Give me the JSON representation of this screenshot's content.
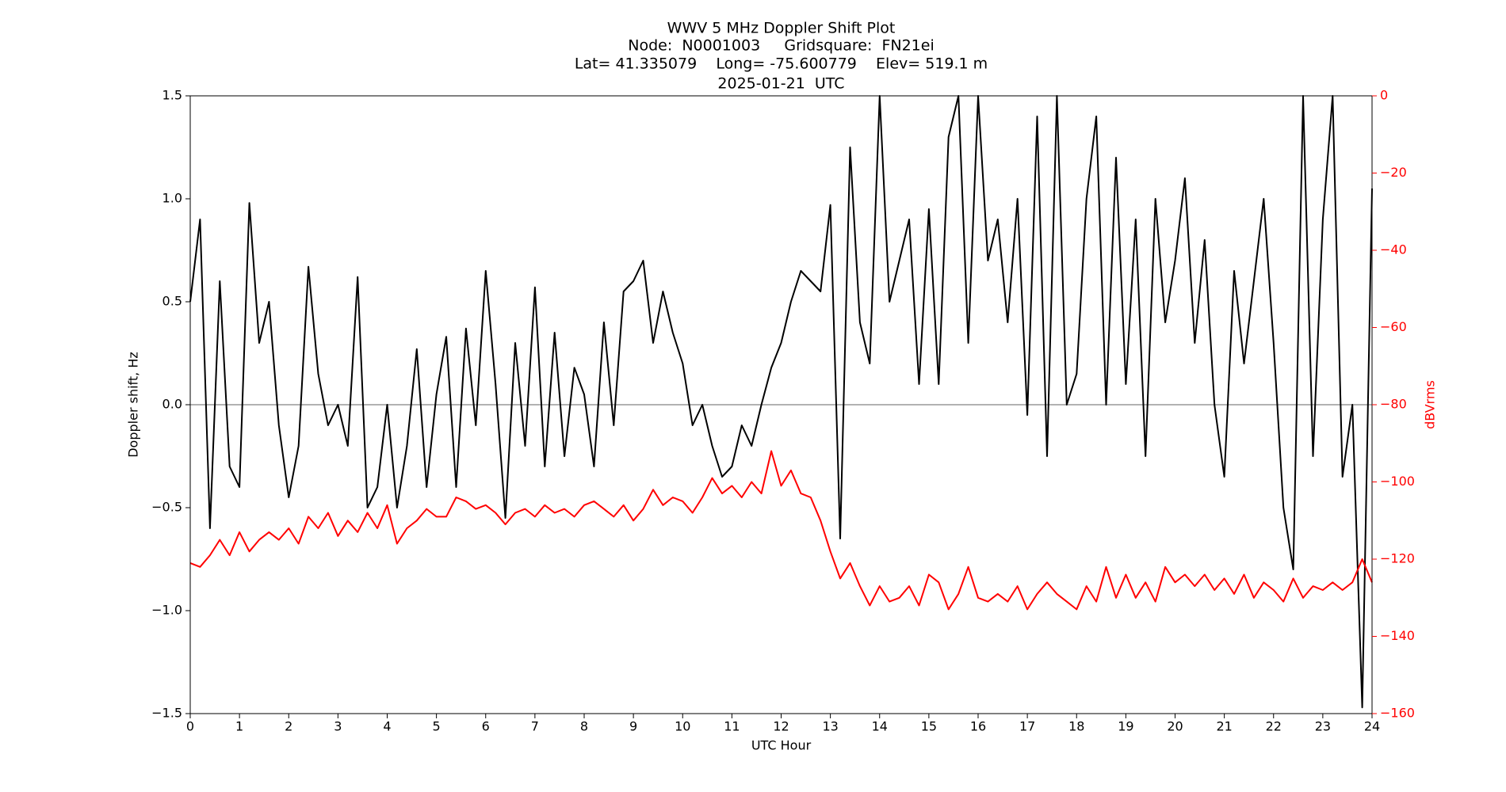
{
  "chart_data": {
    "type": "line",
    "title": [
      "WWV 5 MHz Doppler Shift Plot",
      "Node:  N0001003     Gridsquare:  FN21ei",
      "Lat= 41.335079    Long= -75.600779    Elev= 519.1 m",
      "2025-01-21  UTC"
    ],
    "x_label": "UTC Hour",
    "y_label": "Doppler shift, Hz",
    "y2_label": "dBVrms",
    "x": [
      0,
      0.2,
      0.4,
      0.6,
      0.8,
      1.0,
      1.2,
      1.4,
      1.6,
      1.8,
      2.0,
      2.2,
      2.4,
      2.6,
      2.8,
      3.0,
      3.2,
      3.4,
      3.6,
      3.8,
      4.0,
      4.2,
      4.4,
      4.6,
      4.8,
      5.0,
      5.2,
      5.4,
      5.6,
      5.8,
      6.0,
      6.2,
      6.4,
      6.6,
      6.8,
      7.0,
      7.2,
      7.4,
      7.6,
      7.8,
      8.0,
      8.2,
      8.4,
      8.6,
      8.8,
      9.0,
      9.2,
      9.4,
      9.6,
      9.8,
      10.0,
      10.2,
      10.4,
      10.6,
      10.8,
      11.0,
      11.2,
      11.4,
      11.6,
      11.8,
      12.0,
      12.2,
      12.4,
      12.6,
      12.8,
      13.0,
      13.2,
      13.4,
      13.6,
      13.8,
      14.0,
      14.2,
      14.4,
      14.6,
      14.8,
      15.0,
      15.2,
      15.4,
      15.6,
      15.8,
      16.0,
      16.2,
      16.4,
      16.6,
      16.8,
      17.0,
      17.2,
      17.4,
      17.6,
      17.8,
      18.0,
      18.2,
      18.4,
      18.6,
      18.8,
      19.0,
      19.2,
      19.4,
      19.6,
      19.8,
      20.0,
      20.2,
      20.4,
      20.6,
      20.8,
      21.0,
      21.2,
      21.4,
      21.6,
      21.8,
      22.0,
      22.2,
      22.4,
      22.6,
      22.8,
      23.0,
      23.2,
      23.4,
      23.6,
      23.8,
      24.0
    ],
    "series": [
      {
        "color": "#000000",
        "values": [
          0.5,
          0.9,
          -0.6,
          0.6,
          -0.3,
          -0.4,
          0.98,
          0.3,
          0.5,
          -0.1,
          -0.45,
          -0.2,
          0.67,
          0.15,
          -0.1,
          0.0,
          -0.2,
          0.62,
          -0.5,
          -0.4,
          0.0,
          -0.5,
          -0.2,
          0.27,
          -0.4,
          0.05,
          0.33,
          -0.4,
          0.37,
          -0.1,
          0.65,
          0.1,
          -0.55,
          0.3,
          -0.2,
          0.57,
          -0.3,
          0.35,
          -0.25,
          0.18,
          0.05,
          -0.3,
          0.4,
          -0.1,
          0.55,
          0.6,
          0.7,
          0.3,
          0.55,
          0.35,
          0.2,
          -0.1,
          0.0,
          -0.2,
          -0.35,
          -0.3,
          -0.1,
          -0.2,
          0.0,
          0.18,
          0.3,
          0.5,
          0.65,
          0.6,
          0.55,
          0.97,
          -0.65,
          1.25,
          0.4,
          0.2,
          1.5,
          0.5,
          0.7,
          0.9,
          0.1,
          0.95,
          0.1,
          1.3,
          1.5,
          0.3,
          1.5,
          0.7,
          0.9,
          0.4,
          1.0,
          -0.05,
          1.4,
          -0.25,
          1.5,
          0.0,
          0.15,
          1.0,
          1.4,
          0.0,
          1.2,
          0.1,
          0.9,
          -0.25,
          1.0,
          0.4,
          0.7,
          1.1,
          0.3,
          0.8,
          0.0,
          -0.35,
          0.65,
          0.2,
          0.6,
          1.0,
          0.3,
          -0.5,
          -0.8,
          1.5,
          -0.25,
          0.9,
          1.5,
          -0.35,
          0.0,
          -1.47,
          1.05
        ]
      },
      {
        "color": "#ff0000",
        "axis": "y2",
        "values": [
          -121,
          -122,
          -119,
          -115,
          -119,
          -113,
          -118,
          -115,
          -113,
          -115,
          -112,
          -116,
          -109,
          -112,
          -108,
          -114,
          -110,
          -113,
          -108,
          -112,
          -106,
          -116,
          -112,
          -110,
          -107,
          -109,
          -109,
          -104,
          -105,
          -107,
          -106,
          -108,
          -111,
          -108,
          -107,
          -109,
          -106,
          -108,
          -107,
          -109,
          -106,
          -105,
          -107,
          -109,
          -106,
          -110,
          -107,
          -102,
          -106,
          -104,
          -105,
          -108,
          -104,
          -99,
          -103,
          -101,
          -104,
          -100,
          -103,
          -92,
          -101,
          -97,
          -103,
          -104,
          -110,
          -118,
          -125,
          -121,
          -127,
          -132,
          -127,
          -131,
          -130,
          -127,
          -132,
          -124,
          -126,
          -133,
          -129,
          -122,
          -130,
          -131,
          -129,
          -131,
          -127,
          -133,
          -129,
          -126,
          -129,
          -131,
          -133,
          -127,
          -131,
          -122,
          -130,
          -124,
          -130,
          -126,
          -131,
          -122,
          -126,
          -124,
          -127,
          -124,
          -128,
          -125,
          -129,
          -124,
          -130,
          -126,
          -128,
          -131,
          -125,
          -130,
          -127,
          -128,
          -126,
          -128,
          -126,
          -120,
          -126
        ]
      }
    ],
    "xlim": [
      0,
      24
    ],
    "xticks": [
      0,
      1,
      2,
      3,
      4,
      5,
      6,
      7,
      8,
      9,
      10,
      11,
      12,
      13,
      14,
      15,
      16,
      17,
      18,
      19,
      20,
      21,
      22,
      23,
      24
    ],
    "ylim": [
      -1.5,
      1.5
    ],
    "yticks": [
      {
        "value": -1.5,
        "label": "−1.5"
      },
      {
        "value": -1.0,
        "label": "−1.0"
      },
      {
        "value": -0.5,
        "label": "−0.5"
      },
      {
        "value": 0,
        "label": "0.0"
      },
      0.5,
      {
        "value": 1.0,
        "label": "1.0"
      },
      1.5
    ],
    "y2lim": [
      -160,
      0
    ],
    "y2ticks": [
      {
        "value": -160,
        "label": "−160"
      },
      {
        "value": -140,
        "label": "−140"
      },
      {
        "value": -120,
        "label": "−120"
      },
      {
        "value": -100,
        "label": "−100"
      },
      {
        "value": -80,
        "label": "−80"
      },
      {
        "value": -60,
        "label": "−60"
      },
      {
        "value": -40,
        "label": "−40"
      },
      {
        "value": -20,
        "label": "−20"
      },
      0
    ],
    "y2_color": "#ff0000",
    "zero_line": true
  }
}
